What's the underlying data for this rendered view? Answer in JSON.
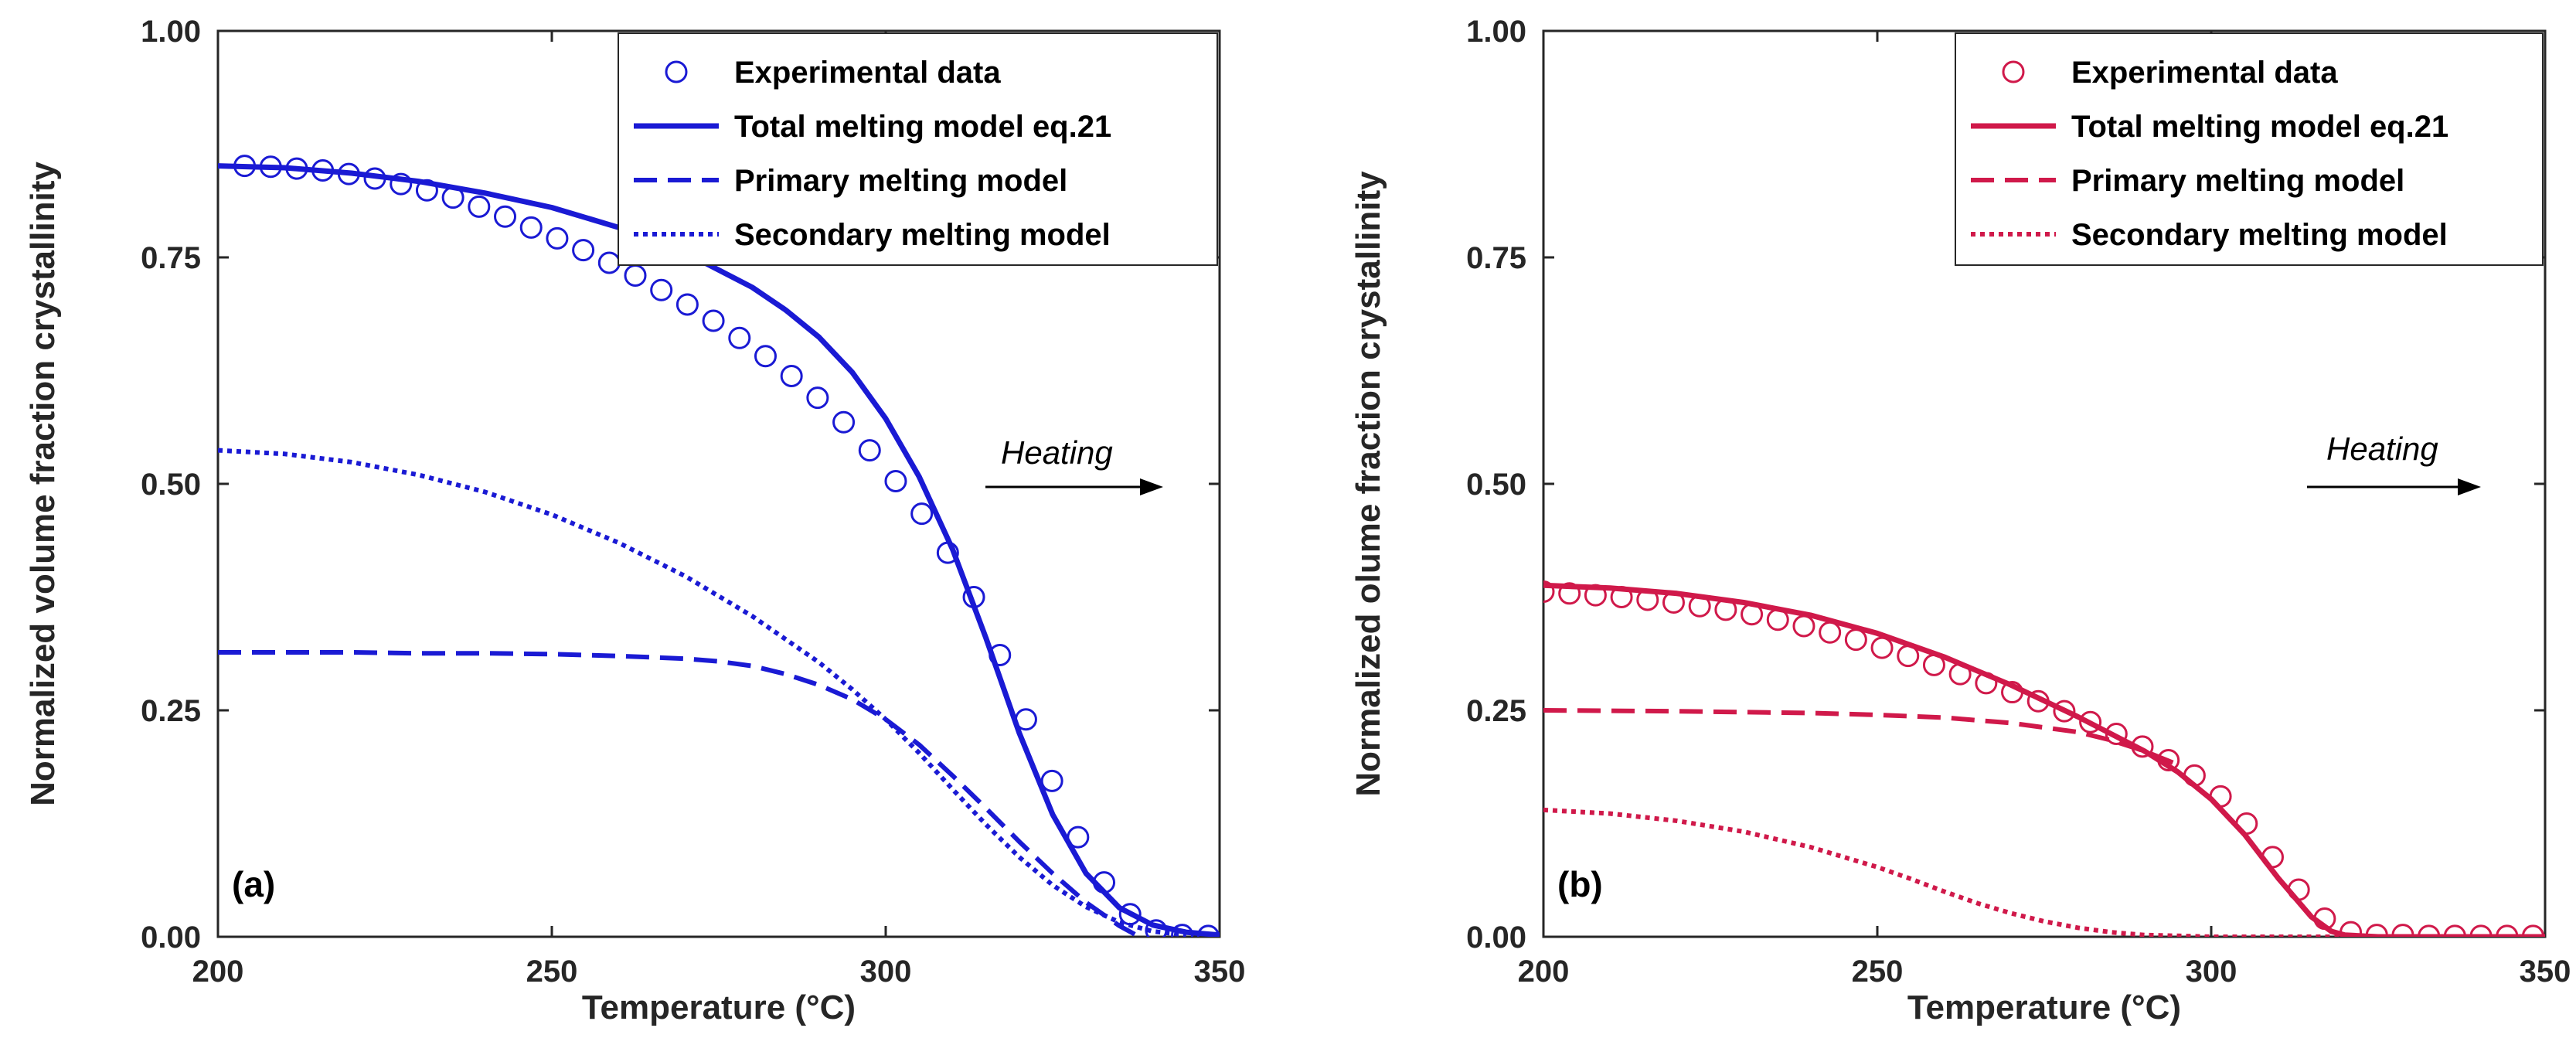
{
  "chart_data": [
    {
      "type": "line",
      "panel_label": "(a)",
      "xlabel": "Temperature (°C)",
      "ylabel": "Normalized volume fraction crystallinity",
      "xlim": [
        200,
        350
      ],
      "ylim": [
        0,
        1
      ],
      "xticks": [
        200,
        250,
        300,
        350
      ],
      "yticks": [
        0,
        0.25,
        0.5,
        0.75,
        1
      ],
      "xtick_labels": [
        "200",
        "250",
        "300",
        "350"
      ],
      "ytick_labels": [
        "0.00",
        "0.25",
        "0.50",
        "0.75",
        "1.00"
      ],
      "color": "#1a1ad4",
      "legend_position": "top-right",
      "annotation": "Heating",
      "series": [
        {
          "name": "Experimental data",
          "style": "markers",
          "x": [
            204,
            207.9,
            211.8,
            215.7,
            219.6,
            223.5,
            227.4,
            231.3,
            235.2,
            239.1,
            243,
            246.9,
            250.8,
            254.7,
            258.6,
            262.5,
            266.4,
            270.3,
            274.2,
            278.1,
            282,
            285.9,
            289.8,
            293.7,
            297.6,
            301.5,
            305.4,
            309.3,
            313.2,
            317.1,
            321,
            324.9,
            328.8,
            332.7,
            336.6,
            340.5,
            344.4,
            348.3
          ],
          "y": [
            0.851,
            0.85,
            0.848,
            0.846,
            0.842,
            0.837,
            0.831,
            0.824,
            0.816,
            0.806,
            0.795,
            0.783,
            0.771,
            0.758,
            0.744,
            0.73,
            0.714,
            0.698,
            0.68,
            0.661,
            0.641,
            0.619,
            0.595,
            0.568,
            0.537,
            0.503,
            0.467,
            0.424,
            0.375,
            0.311,
            0.24,
            0.172,
            0.11,
            0.06,
            0.025,
            0.007,
            0.002,
            0.001
          ]
        },
        {
          "name": "Total melting model eq.21",
          "style": "solid",
          "x": [
            200,
            210,
            220,
            230,
            240,
            250,
            260,
            270,
            280,
            285,
            290,
            295,
            300,
            305,
            310,
            315,
            320,
            325,
            330,
            335,
            340,
            345,
            350
          ],
          "y": [
            0.851,
            0.849,
            0.843,
            0.834,
            0.821,
            0.805,
            0.783,
            0.755,
            0.717,
            0.692,
            0.662,
            0.623,
            0.572,
            0.508,
            0.428,
            0.33,
            0.225,
            0.135,
            0.07,
            0.032,
            0.013,
            0.005,
            0.002
          ]
        },
        {
          "name": "Primary melting model",
          "style": "dashed",
          "x": [
            200,
            210,
            220,
            230,
            240,
            250,
            260,
            270,
            275,
            280,
            285,
            290,
            295,
            300,
            305,
            310,
            315,
            320,
            325,
            330,
            335,
            338
          ],
          "y": [
            0.314,
            0.314,
            0.314,
            0.313,
            0.313,
            0.312,
            0.31,
            0.307,
            0.304,
            0.299,
            0.29,
            0.278,
            0.262,
            0.24,
            0.212,
            0.178,
            0.142,
            0.105,
            0.07,
            0.038,
            0.012,
            0.0
          ]
        },
        {
          "name": "Secondary melting model",
          "style": "dotted",
          "x": [
            200,
            210,
            220,
            230,
            240,
            250,
            260,
            270,
            280,
            290,
            295,
            300,
            305,
            310,
            315,
            320,
            325,
            330,
            335,
            340,
            345
          ],
          "y": [
            0.537,
            0.533,
            0.524,
            0.51,
            0.491,
            0.466,
            0.435,
            0.398,
            0.354,
            0.303,
            0.273,
            0.24,
            0.203,
            0.163,
            0.124,
            0.088,
            0.057,
            0.033,
            0.016,
            0.006,
            0.002
          ]
        }
      ]
    },
    {
      "type": "line",
      "panel_label": "(b)",
      "xlabel": "Temperature (°C)",
      "ylabel": "Normalized olume fraction crystallinity",
      "xlim": [
        200,
        350
      ],
      "ylim": [
        0,
        1
      ],
      "xticks": [
        200,
        250,
        300,
        350
      ],
      "yticks": [
        0,
        0.25,
        0.5,
        0.75,
        1
      ],
      "xtick_labels": [
        "200",
        "250",
        "300",
        "350"
      ],
      "ytick_labels": [
        "0.00",
        "0.25",
        "0.50",
        "0.75",
        "1.00"
      ],
      "color": "#d0194a",
      "legend_position": "top-right",
      "annotation": "Heating",
      "series": [
        {
          "name": "Experimental data",
          "style": "markers",
          "x": [
            200,
            203.9,
            207.8,
            211.7,
            215.6,
            219.5,
            223.4,
            227.3,
            231.2,
            235.1,
            239,
            242.9,
            246.8,
            250.7,
            254.6,
            258.5,
            262.4,
            266.3,
            270.2,
            274.1,
            278,
            281.9,
            285.8,
            289.7,
            293.6,
            297.5,
            301.4,
            305.3,
            309.2,
            313.1,
            317,
            320.9,
            324.8,
            328.7,
            332.6,
            336.5,
            340.4,
            344.3,
            348.2
          ],
          "y": [
            0.381,
            0.379,
            0.377,
            0.375,
            0.372,
            0.369,
            0.365,
            0.361,
            0.356,
            0.35,
            0.343,
            0.336,
            0.328,
            0.319,
            0.31,
            0.3,
            0.29,
            0.28,
            0.27,
            0.26,
            0.249,
            0.237,
            0.224,
            0.21,
            0.195,
            0.178,
            0.155,
            0.125,
            0.088,
            0.052,
            0.02,
            0.005,
            0.002,
            0.002,
            0.001,
            0.001,
            0.001,
            0.001,
            0.001
          ]
        },
        {
          "name": "Total melting model eq.21",
          "style": "solid",
          "x": [
            200,
            210,
            220,
            230,
            240,
            250,
            260,
            270,
            280,
            290,
            295,
            300,
            305,
            310,
            315,
            318,
            320,
            325,
            330,
            340,
            350
          ],
          "y": [
            0.388,
            0.385,
            0.379,
            0.369,
            0.355,
            0.335,
            0.309,
            0.278,
            0.243,
            0.205,
            0.182,
            0.152,
            0.113,
            0.065,
            0.022,
            0.006,
            0.002,
            0.0,
            0.0,
            0.0,
            0.0
          ]
        },
        {
          "name": "Primary melting model",
          "style": "dashed",
          "x": [
            200,
            220,
            240,
            250,
            260,
            270,
            280,
            285,
            290,
            295
          ],
          "y": [
            0.25,
            0.249,
            0.247,
            0.245,
            0.242,
            0.236,
            0.226,
            0.217,
            0.205,
            0.19
          ]
        },
        {
          "name": "Secondary melting model",
          "style": "dotted",
          "x": [
            200,
            210,
            220,
            230,
            240,
            250,
            255,
            260,
            265,
            270,
            275,
            280,
            285,
            290,
            295,
            300,
            310,
            320
          ],
          "y": [
            0.14,
            0.136,
            0.128,
            0.116,
            0.099,
            0.077,
            0.064,
            0.05,
            0.037,
            0.026,
            0.017,
            0.01,
            0.005,
            0.002,
            0.001,
            0.0,
            0.0,
            0.0
          ]
        }
      ]
    }
  ]
}
